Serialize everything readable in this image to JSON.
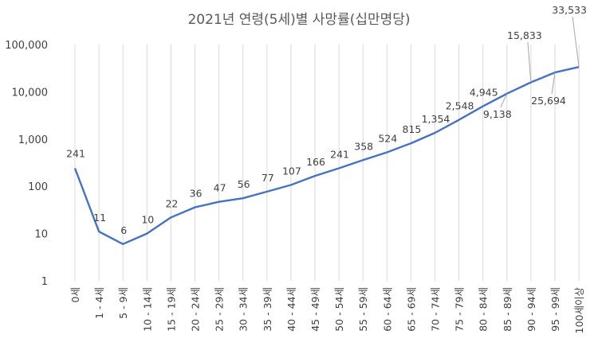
{
  "chart_data": {
    "type": "line",
    "title": "2021년 연령(5세)별 사망률(십만명당)",
    "xlabel": "",
    "ylabel": "",
    "y_scale": "log",
    "ylim": [
      1,
      100000
    ],
    "yticks": [
      "1",
      "10",
      "100",
      "1,000",
      "10,000",
      "100,000"
    ],
    "grid": "vertical",
    "legend": "none",
    "line_color": "#4472C4",
    "categories": [
      "0세",
      "1 - 4세",
      "5 - 9세",
      "10 - 14세",
      "15 - 19세",
      "20 - 24세",
      "25 - 29세",
      "30 - 34세",
      "35 - 39세",
      "40 - 44세",
      "45 - 49세",
      "50 - 54세",
      "55 - 59세",
      "60 - 64세",
      "65 - 69세",
      "70 - 74세",
      "75 - 79세",
      "80 - 84세",
      "85 - 89세",
      "90 - 94세",
      "95 - 99세",
      "100세이상"
    ],
    "values": [
      241,
      11,
      6,
      10,
      22,
      36,
      47,
      56,
      77,
      107,
      166,
      241,
      358,
      524,
      815,
      1354,
      2548,
      4945,
      9138,
      15833,
      25694,
      33533
    ],
    "data_labels": [
      "241",
      "11",
      "6",
      "10",
      "22",
      "36",
      "47",
      "56",
      "77",
      "107",
      "166",
      "241",
      "358",
      "524",
      "815",
      "1,354",
      "2,548",
      "4,945",
      "9,138",
      "15,833",
      "25,694",
      "33,533"
    ]
  }
}
